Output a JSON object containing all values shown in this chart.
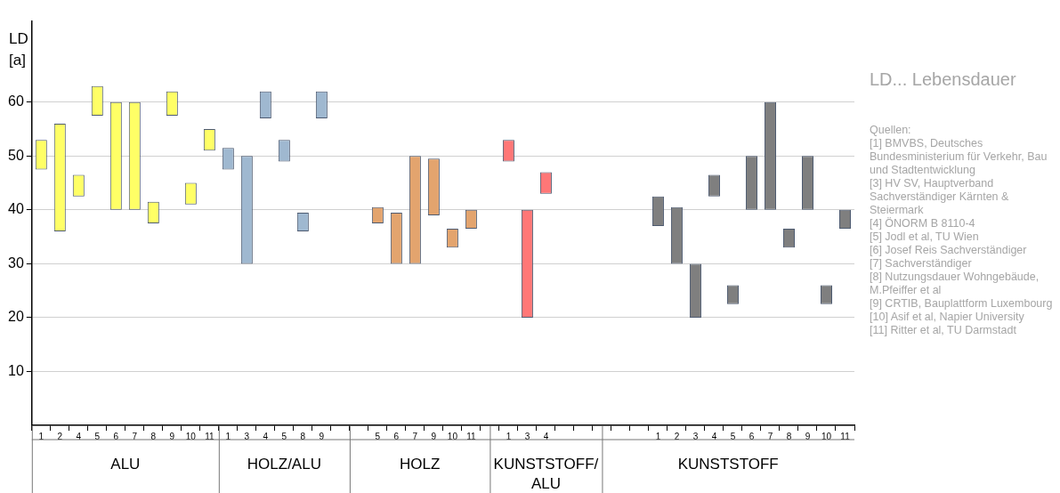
{
  "chart_data": {
    "type": "bar",
    "ylabel": "LD [a]",
    "categories": [
      "1",
      "2",
      "4",
      "5",
      "6",
      "7",
      "8",
      "9",
      "10",
      "11",
      "1",
      "3",
      "4",
      "5",
      "8",
      "9",
      null,
      null,
      "5",
      "6",
      "7",
      "9",
      "10",
      "11",
      null,
      "1",
      "3",
      "4",
      null,
      null,
      null,
      null,
      null,
      "1",
      "2",
      "3",
      "4",
      "5",
      "6",
      "7",
      "8",
      "9",
      "10",
      "11"
    ],
    "series": [
      {
        "color": "#ffff66",
        "values": [
          5.5,
          20,
          4,
          5.5,
          20,
          20,
          4,
          4.5,
          4,
          4,
          null,
          null,
          null,
          null,
          null,
          null,
          null,
          null,
          null,
          null,
          null,
          null,
          null,
          null,
          null,
          null,
          null,
          null,
          null,
          null,
          null,
          null,
          null,
          null,
          null,
          null,
          null,
          null,
          null,
          null,
          null,
          null,
          null,
          null
        ],
        "base": [
          47.5,
          36,
          42.5,
          57.5,
          40,
          40,
          37.5,
          57.5,
          41,
          51,
          null,
          null,
          null,
          null,
          null,
          null,
          null,
          null,
          null,
          null,
          null,
          null,
          null,
          null,
          null,
          null,
          null,
          null,
          null,
          null,
          null,
          null,
          null,
          null,
          null,
          null,
          null,
          null,
          null,
          null,
          null,
          null,
          null,
          null
        ]
      },
      {
        "color": "#9fb8d0",
        "values": [
          null,
          null,
          null,
          null,
          null,
          null,
          null,
          null,
          null,
          null,
          4,
          20,
          5,
          4,
          3.5,
          5,
          null,
          null,
          null,
          null,
          null,
          null,
          null,
          null,
          null,
          null,
          null,
          null,
          null,
          null,
          null,
          null,
          null,
          null,
          null,
          null,
          null,
          null,
          null,
          null,
          null,
          null,
          null,
          null
        ],
        "base": [
          null,
          null,
          null,
          null,
          null,
          null,
          null,
          null,
          null,
          null,
          47.5,
          30,
          57,
          49,
          36,
          57,
          null,
          null,
          null,
          null,
          null,
          null,
          null,
          null,
          null,
          null,
          null,
          null,
          null,
          null,
          null,
          null,
          null,
          null,
          null,
          null,
          null,
          null,
          null,
          null,
          null,
          null,
          null,
          null
        ]
      },
      {
        "color": "#e3a46e",
        "values": [
          null,
          null,
          null,
          null,
          null,
          null,
          null,
          null,
          null,
          null,
          null,
          null,
          null,
          null,
          null,
          null,
          null,
          null,
          3,
          9.5,
          20,
          10.5,
          3.5,
          3.5,
          null,
          null,
          null,
          null,
          null,
          null,
          null,
          null,
          null,
          null,
          null,
          null,
          null,
          null,
          null,
          null,
          null,
          null,
          null,
          null
        ],
        "base": [
          null,
          null,
          null,
          null,
          null,
          null,
          null,
          null,
          null,
          null,
          null,
          null,
          null,
          null,
          null,
          null,
          null,
          null,
          37.5,
          30,
          30,
          39,
          33,
          36.5,
          null,
          null,
          null,
          null,
          null,
          null,
          null,
          null,
          null,
          null,
          null,
          null,
          null,
          null,
          null,
          null,
          null,
          null,
          null,
          null
        ]
      },
      {
        "color": "#ff7777",
        "values": [
          null,
          null,
          null,
          null,
          null,
          null,
          null,
          null,
          null,
          null,
          null,
          null,
          null,
          null,
          null,
          null,
          null,
          null,
          null,
          null,
          null,
          null,
          null,
          null,
          null,
          4,
          20,
          4,
          null,
          null,
          null,
          null,
          null,
          null,
          null,
          null,
          null,
          null,
          null,
          null,
          null,
          null,
          null,
          null
        ],
        "base": [
          null,
          null,
          null,
          null,
          null,
          null,
          null,
          null,
          null,
          null,
          null,
          null,
          null,
          null,
          null,
          null,
          null,
          null,
          null,
          null,
          null,
          null,
          null,
          null,
          null,
          49,
          20,
          43,
          null,
          null,
          null,
          null,
          null,
          null,
          null,
          null,
          null,
          null,
          null,
          null,
          null,
          null,
          null,
          null
        ]
      },
      {
        "color": "#7f7f7f",
        "values": [
          null,
          null,
          null,
          null,
          null,
          null,
          null,
          null,
          null,
          null,
          null,
          null,
          null,
          null,
          null,
          null,
          null,
          null,
          null,
          null,
          null,
          null,
          null,
          null,
          null,
          null,
          null,
          null,
          null,
          null,
          null,
          null,
          null,
          5.5,
          10.5,
          10,
          4,
          3.5,
          10,
          20,
          3.5,
          10,
          3.5,
          3.5
        ],
        "base": [
          null,
          null,
          null,
          null,
          null,
          null,
          null,
          null,
          null,
          null,
          null,
          null,
          null,
          null,
          null,
          null,
          null,
          null,
          null,
          null,
          null,
          null,
          null,
          null,
          null,
          null,
          null,
          null,
          null,
          null,
          null,
          null,
          null,
          37,
          30,
          20,
          42.5,
          22.5,
          40,
          40,
          33,
          40,
          22.5,
          36.5
        ]
      }
    ],
    "ylim": [
      0,
      75
    ],
    "yticks": [
      10,
      20,
      30,
      40,
      50,
      60
    ],
    "grid": "y",
    "legend": false,
    "annotations": [
      "ALU",
      "HOLZ/ALU",
      "HOLZ",
      "KUNSTSTOFF/ALU",
      "KUNSTSTOFF",
      "LD... Lebensdauer",
      "Quellen:",
      "[1] BMVBS, Deutsches Bundesministerium für Verkehr, Bau und Stadtentwicklung",
      "[3] HV SV, Hauptverband Sachverständiger Kärnten & Steiermark",
      "[4] ÖNORM B 8110-4",
      "[5] Jodl et al, TU Wien",
      "[6] Josef Reis Sachverständiger",
      "[7] Sachverständiger",
      "[8] Nutzungsdauer Wohngebäude, M.Pfeiffer et al",
      "[9] CRTIB, Bauplattform Luxembourg",
      "[10] Asif et al, Napier University",
      "[11] Ritter et al, TU Darmstadt"
    ]
  }
}
